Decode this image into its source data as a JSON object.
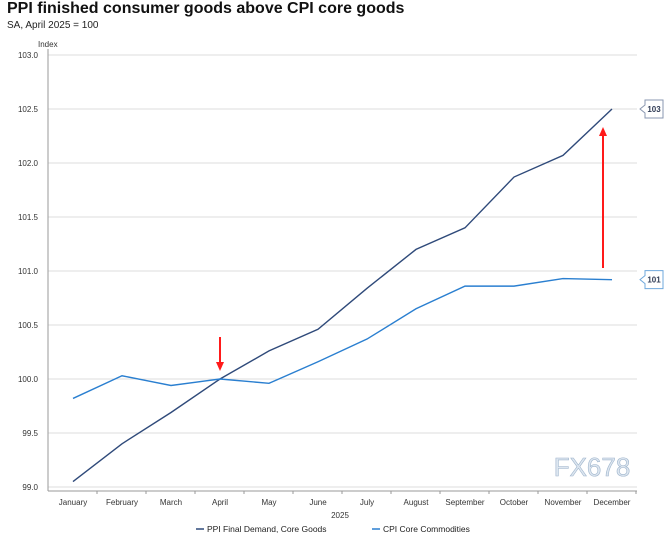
{
  "chart_data": {
    "type": "line",
    "title": "PPI finished consumer goods above CPI core goods",
    "subtitle": "SA, April 2025 = 100",
    "ylabel": "Index",
    "xlabel": "2025",
    "ylim": [
      99.0,
      103.0
    ],
    "yticks": [
      "99.0",
      "99.5",
      "100.0",
      "100.5",
      "101.0",
      "101.5",
      "102.0",
      "102.5",
      "103.0"
    ],
    "grid": true,
    "legend_position": "bottom",
    "categories": [
      "January",
      "February",
      "March",
      "April",
      "May",
      "June",
      "July",
      "August",
      "September",
      "October",
      "November",
      "December"
    ],
    "series": [
      {
        "name": "PPI Final Demand, Core Goods",
        "color": "#2f4a7a",
        "values": [
          99.05,
          99.4,
          99.69,
          100.0,
          100.26,
          100.46,
          100.84,
          101.2,
          101.4,
          101.87,
          102.07,
          102.5
        ],
        "end_label": "103"
      },
      {
        "name": "CPI Core Commodities",
        "color": "#2a7fd0",
        "values": [
          99.82,
          100.03,
          99.94,
          100.0,
          99.96,
          100.16,
          100.37,
          100.65,
          100.86,
          100.86,
          100.93,
          100.92
        ],
        "end_label": "101"
      }
    ],
    "annotations": [
      {
        "type": "arrow",
        "direction": "down",
        "at": "April",
        "color": "#ff0000"
      },
      {
        "type": "arrow",
        "direction": "up",
        "at": "December",
        "color": "#ff0000"
      }
    ]
  },
  "watermark": "FX678"
}
